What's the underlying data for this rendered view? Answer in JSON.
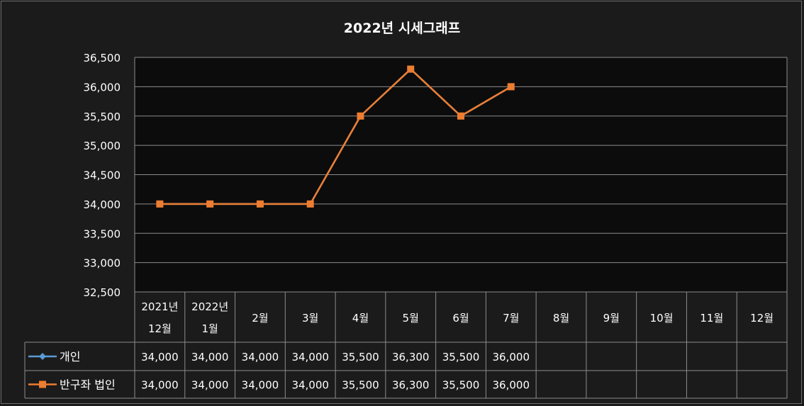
{
  "chart_data": {
    "type": "line",
    "title": "2022년 시세그래프",
    "categories": [
      [
        "2021년",
        "12월"
      ],
      [
        "2022년",
        "1월"
      ],
      [
        "2월"
      ],
      [
        "3월"
      ],
      [
        "4월"
      ],
      [
        "5월"
      ],
      [
        "6월"
      ],
      [
        "7월"
      ],
      [
        "8월"
      ],
      [
        "9월"
      ],
      [
        "10월"
      ],
      [
        "11월"
      ],
      [
        "12월"
      ]
    ],
    "ylim": [
      32500,
      36500
    ],
    "yticks": [
      32500,
      33000,
      33500,
      34000,
      34500,
      35000,
      35500,
      36000,
      36500
    ],
    "ytick_labels": [
      "32,500",
      "33,000",
      "33,500",
      "34,000",
      "34,500",
      "35,000",
      "35,500",
      "36,000",
      "36,500"
    ],
    "grid": true,
    "series": [
      {
        "name": "개인",
        "color": "#5b9bd5",
        "marker": "diamond",
        "values": [
          34000,
          34000,
          34000,
          34000,
          35500,
          36300,
          35500,
          36000,
          null,
          null,
          null,
          null,
          null
        ],
        "table_values": [
          "34,000",
          "34,000",
          "34,000",
          "34,000",
          "35,500",
          "36,300",
          "35,500",
          "36,000",
          "",
          "",
          "",
          "",
          ""
        ]
      },
      {
        "name": "반구좌 법인",
        "color": "#ed7d31",
        "marker": "square",
        "values": [
          34000,
          34000,
          34000,
          34000,
          35500,
          36300,
          35500,
          36000,
          null,
          null,
          null,
          null,
          null
        ],
        "table_values": [
          "34,000",
          "34,000",
          "34,000",
          "34,000",
          "35,500",
          "36,300",
          "35,500",
          "36,000",
          "",
          "",
          "",
          "",
          ""
        ]
      }
    ],
    "legend_position": "data-table"
  }
}
